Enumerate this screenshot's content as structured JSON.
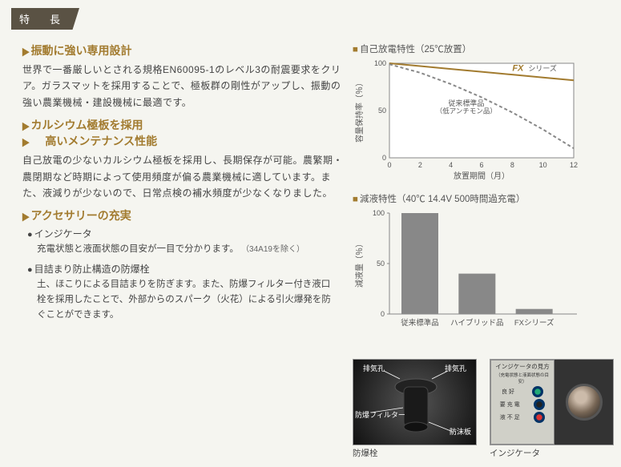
{
  "tag": "特　長",
  "sections": [
    {
      "heading": "振動に強い専用設計",
      "body": "世界で一番厳しいとされる規格EN60095-1のレベル3の耐震要求をクリア。ガラスマットを採用することで、極板群の剛性がアップし、振動の強い農業機械・建設機械に最適です。"
    },
    {
      "heading": "カルシウム極板を採用",
      "heading2": "高いメンテナンス性能",
      "body": "自己放電の少ないカルシウム極板を採用し、長期保存が可能。農繁期・農閉期など時期によって使用頻度が偏る農業機械に適しています。また、液減りが少ないので、日常点検の補水頻度が少なくなりました。"
    },
    {
      "heading": "アクセサリーの充実",
      "subs": [
        {
          "title": "インジケータ",
          "body": "充電状態と液面状態の目安が一目で分かります。",
          "note": "（34A19を除く）"
        },
        {
          "title": "目詰まり防止構造の防爆栓",
          "body": "土、ほこりによる目詰まりを防ぎます。また、防爆フィルター付き液口栓を採用したことで、外部からのスパーク（火花）による引火爆発を防ぐことができます。"
        }
      ]
    }
  ],
  "chart1": {
    "title": "自己放電特性（25℃放置）",
    "ylabel": "容量保持率（％）",
    "xlabel": "放置期間（月）",
    "xticks": [
      "0",
      "2",
      "4",
      "6",
      "8",
      "10",
      "12"
    ],
    "yticks": [
      "0",
      "50",
      "100"
    ],
    "series": [
      {
        "label": "FXシリーズ",
        "color": "#a27b2f",
        "dash": "none",
        "pts": [
          [
            0,
            100
          ],
          [
            2,
            97
          ],
          [
            4,
            94
          ],
          [
            6,
            91
          ],
          [
            8,
            88
          ],
          [
            10,
            85
          ],
          [
            12,
            82
          ]
        ]
      },
      {
        "label": "従来標準品 (低アンチモン品)",
        "color": "#888",
        "dash": "4,3",
        "pts": [
          [
            0,
            99
          ],
          [
            2,
            90
          ],
          [
            4,
            78
          ],
          [
            6,
            64
          ],
          [
            8,
            48
          ],
          [
            10,
            30
          ],
          [
            12,
            10
          ]
        ]
      }
    ],
    "annot": {
      "fx": "FXシリーズ",
      "std": "従来標準品\n（低アンチモン品）"
    },
    "font_color_fx": "#a27b2f"
  },
  "chart2": {
    "title": "減液特性（40℃ 14.4V 500時間過充電）",
    "ylabel": "減液量（％）",
    "yticks": [
      "0",
      "50",
      "100"
    ],
    "bars": [
      {
        "label": "従来標準品",
        "value": 100
      },
      {
        "label": "ハイブリッド品",
        "value": 40
      },
      {
        "label": "FXシリーズ",
        "value": 5
      }
    ],
    "bar_color": "#888888"
  },
  "photos": {
    "p1": {
      "caption": "防爆栓",
      "labels": {
        "a": "排気孔",
        "b": "排気孔",
        "c": "防爆フィルター",
        "d": "防沫板"
      }
    },
    "p2": {
      "caption": "インジケータ",
      "plate": {
        "t": "インジケータの見方",
        "s": "（充電状態と液面状態の目安）",
        "l1": "良 好",
        "l2": "要 充 電",
        "l3": "液 不 足"
      }
    }
  }
}
